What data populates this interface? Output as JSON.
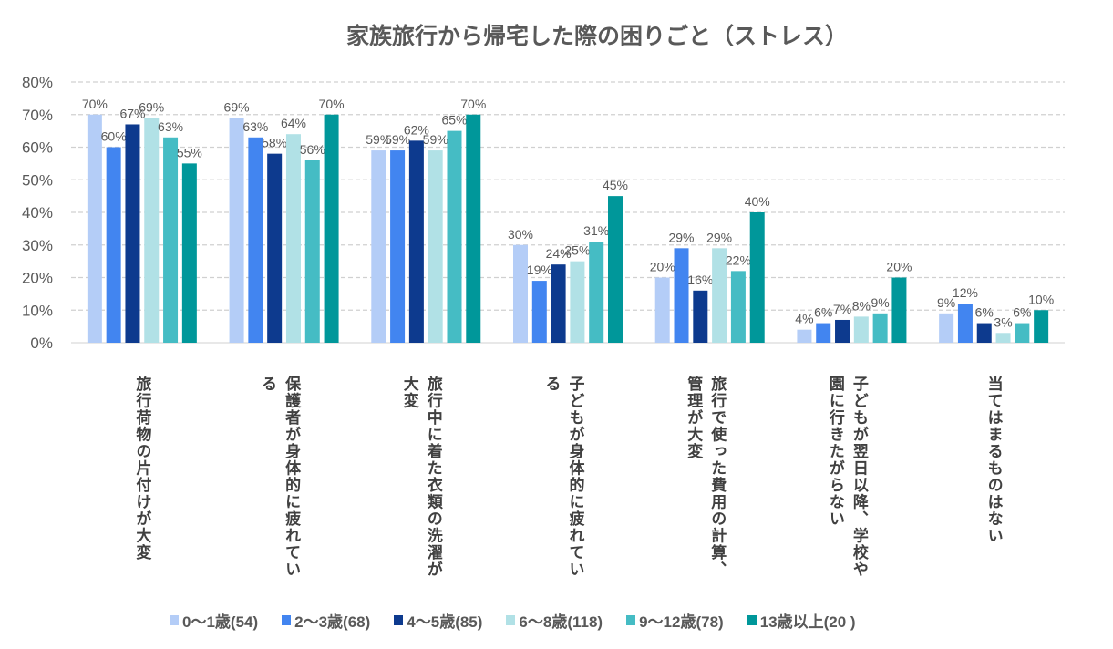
{
  "chart_data": {
    "type": "bar",
    "title": "家族旅行から帰宅した際の困りごと（ストレス）",
    "categories": [
      [
        "旅行荷物の片付けが大変"
      ],
      [
        "保護者が身体的に疲れてい",
        "る"
      ],
      [
        "旅行中に着た衣類の洗濯が",
        "大変"
      ],
      [
        "子どもが身体的に疲れてい",
        "る"
      ],
      [
        "旅行で使った費用の計算、",
        "管理が大変"
      ],
      [
        "子どもが翌日以降、学校や",
        "園に行きたがらない"
      ],
      [
        "当てはまるものはない"
      ]
    ],
    "series": [
      {
        "name": "0～1歳(54)",
        "color": "#b4cdf7",
        "values": [
          70,
          69,
          59,
          30,
          20,
          4,
          9
        ]
      },
      {
        "name": "2～3歳(68)",
        "color": "#4285f0",
        "values": [
          60,
          63,
          59,
          19,
          29,
          6,
          12
        ]
      },
      {
        "name": "4～5歳(85)",
        "color": "#0d3a8e",
        "values": [
          67,
          58,
          62,
          24,
          16,
          7,
          6
        ]
      },
      {
        "name": "6～8歳(118)",
        "color": "#b1e1e6",
        "values": [
          69,
          64,
          59,
          25,
          29,
          8,
          3
        ]
      },
      {
        "name": "9～12歳(78)",
        "color": "#45bcc4",
        "values": [
          63,
          56,
          65,
          31,
          22,
          9,
          6
        ]
      },
      {
        "name": "13歳以上(20 )",
        "color": "#00979a",
        "values": [
          55,
          70,
          70,
          45,
          40,
          20,
          10
        ]
      }
    ],
    "ylim": [
      0,
      80
    ],
    "yticks": [
      "0%",
      "10%",
      "20%",
      "30%",
      "40%",
      "50%",
      "60%",
      "70%",
      "80%"
    ],
    "grid": true,
    "legend": "bottom",
    "value_suffix": "%"
  }
}
